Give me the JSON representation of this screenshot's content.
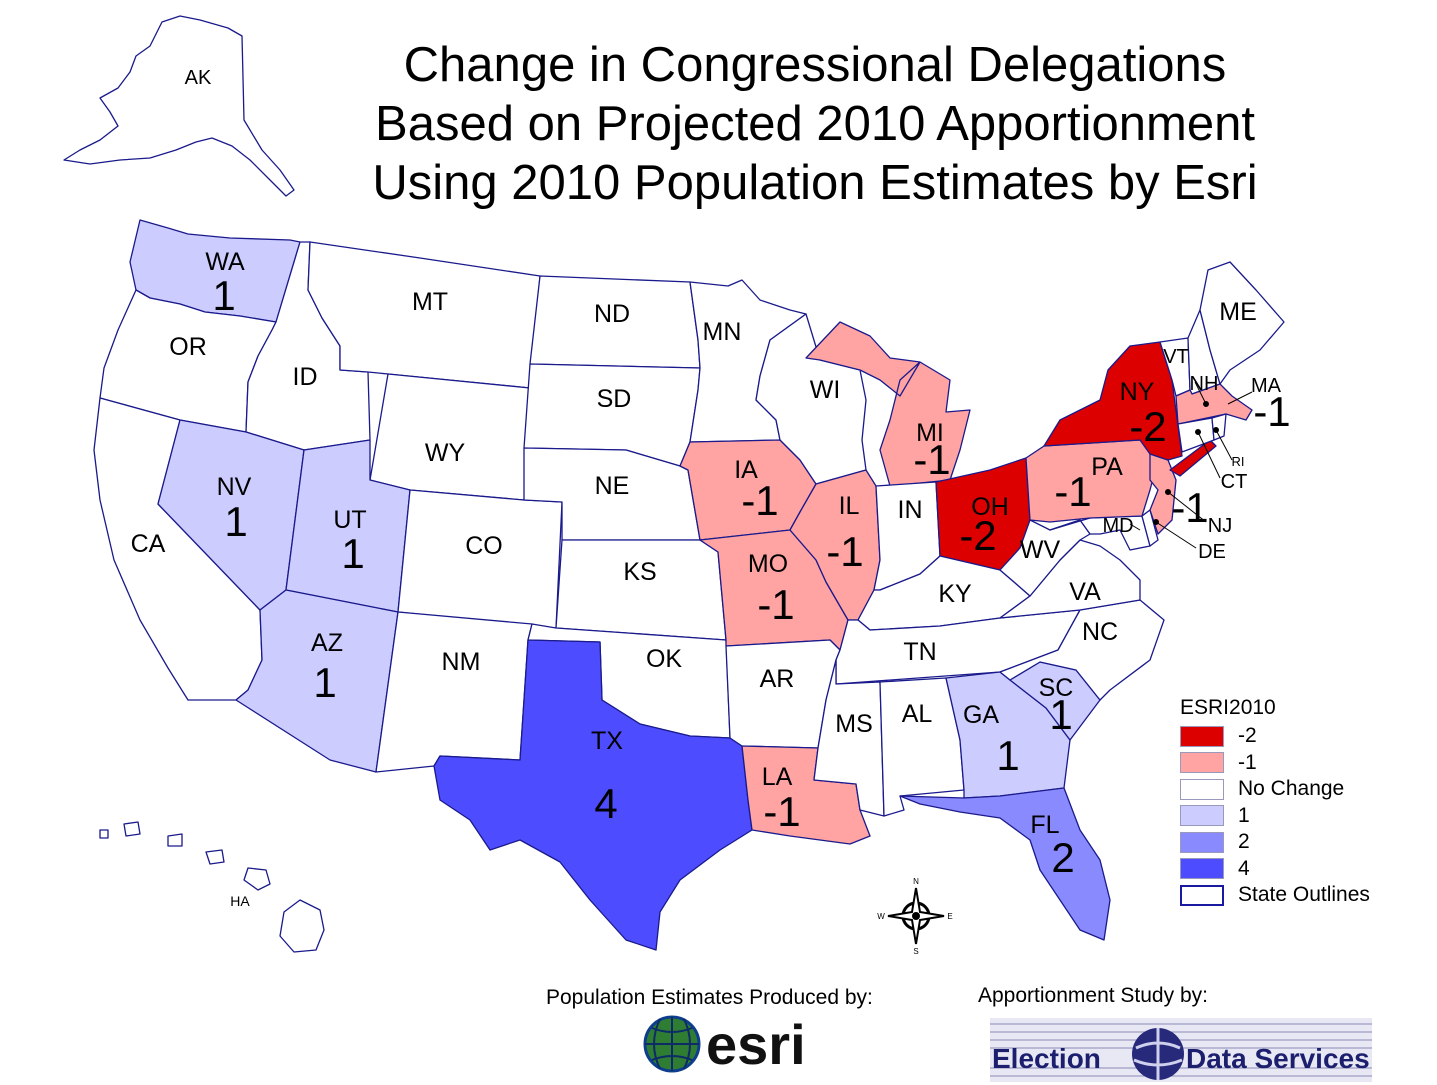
{
  "title": {
    "line1": "Change in Congressional Delegations",
    "line2": "Based on Projected 2010 Apportionment",
    "line3": "Using 2010 Population Estimates by Esri"
  },
  "colors": {
    "-2": "#dd0000",
    "-1": "#ffa3a3",
    "0": "#ffffff",
    "1": "#ccccff",
    "2": "#8a8aff",
    "4": "#4d4dff",
    "outline": "#1a1a8c"
  },
  "states": [
    {
      "abbr": "AK",
      "change": 0
    },
    {
      "abbr": "WA",
      "change": 1
    },
    {
      "abbr": "OR",
      "change": 0
    },
    {
      "abbr": "CA",
      "change": 0
    },
    {
      "abbr": "ID",
      "change": 0
    },
    {
      "abbr": "NV",
      "change": 1
    },
    {
      "abbr": "MT",
      "change": 0
    },
    {
      "abbr": "WY",
      "change": 0
    },
    {
      "abbr": "UT",
      "change": 1
    },
    {
      "abbr": "AZ",
      "change": 1
    },
    {
      "abbr": "CO",
      "change": 0
    },
    {
      "abbr": "NM",
      "change": 0
    },
    {
      "abbr": "ND",
      "change": 0
    },
    {
      "abbr": "SD",
      "change": 0
    },
    {
      "abbr": "NE",
      "change": 0
    },
    {
      "abbr": "KS",
      "change": 0
    },
    {
      "abbr": "OK",
      "change": 0
    },
    {
      "abbr": "TX",
      "change": 4
    },
    {
      "abbr": "MN",
      "change": 0
    },
    {
      "abbr": "IA",
      "change": -1
    },
    {
      "abbr": "MO",
      "change": -1
    },
    {
      "abbr": "AR",
      "change": 0
    },
    {
      "abbr": "LA",
      "change": -1
    },
    {
      "abbr": "WI",
      "change": 0
    },
    {
      "abbr": "IL",
      "change": -1
    },
    {
      "abbr": "MI",
      "change": -1
    },
    {
      "abbr": "IN",
      "change": 0
    },
    {
      "abbr": "OH",
      "change": -2
    },
    {
      "abbr": "KY",
      "change": 0
    },
    {
      "abbr": "TN",
      "change": 0
    },
    {
      "abbr": "MS",
      "change": 0
    },
    {
      "abbr": "AL",
      "change": 0
    },
    {
      "abbr": "GA",
      "change": 1
    },
    {
      "abbr": "FL",
      "change": 2
    },
    {
      "abbr": "SC",
      "change": 1
    },
    {
      "abbr": "NC",
      "change": 0
    },
    {
      "abbr": "VA",
      "change": 0
    },
    {
      "abbr": "WV",
      "change": 0
    },
    {
      "abbr": "PA",
      "change": -1
    },
    {
      "abbr": "NY",
      "change": -2
    },
    {
      "abbr": "VT",
      "change": 0
    },
    {
      "abbr": "NH",
      "change": 0
    },
    {
      "abbr": "ME",
      "change": 0
    },
    {
      "abbr": "MA",
      "change": -1
    },
    {
      "abbr": "RI",
      "change": 0
    },
    {
      "abbr": "CT",
      "change": 0
    },
    {
      "abbr": "NJ",
      "change": -1
    },
    {
      "abbr": "DE",
      "change": 0
    },
    {
      "abbr": "MD",
      "change": 0
    },
    {
      "abbr": "HA",
      "change": 0
    }
  ],
  "labels": {
    "WA": "1",
    "NV": "1",
    "UT": "1",
    "AZ": "1",
    "TX": "4",
    "IA": "-1",
    "MO": "-1",
    "LA": "-1",
    "IL": "-1",
    "MI": "-1",
    "OH": "-2",
    "GA": "1",
    "FL": "2",
    "SC": "1",
    "PA": "-1",
    "NY": "-2",
    "MA": "-1",
    "NJ": "-1"
  },
  "legend": {
    "title": "ESRI2010",
    "items": [
      {
        "label": "-2",
        "color": "#dd0000"
      },
      {
        "label": "-1",
        "color": "#ffa3a3"
      },
      {
        "label": "No Change",
        "color": "#ffffff"
      },
      {
        "label": "1",
        "color": "#ccccff"
      },
      {
        "label": "2",
        "color": "#8a8aff"
      },
      {
        "label": "4",
        "color": "#4d4dff"
      },
      {
        "label": "State Outlines",
        "color": "outline"
      }
    ]
  },
  "compass": {
    "n": "N",
    "s": "S",
    "e": "E",
    "w": "W"
  },
  "credits": {
    "esri_text": "Population Estimates Produced by:",
    "esri_logo_text": "esri",
    "eds_text": "Apportionment Study by:",
    "eds_logo_left": "Election",
    "eds_logo_right": "Data Services"
  }
}
